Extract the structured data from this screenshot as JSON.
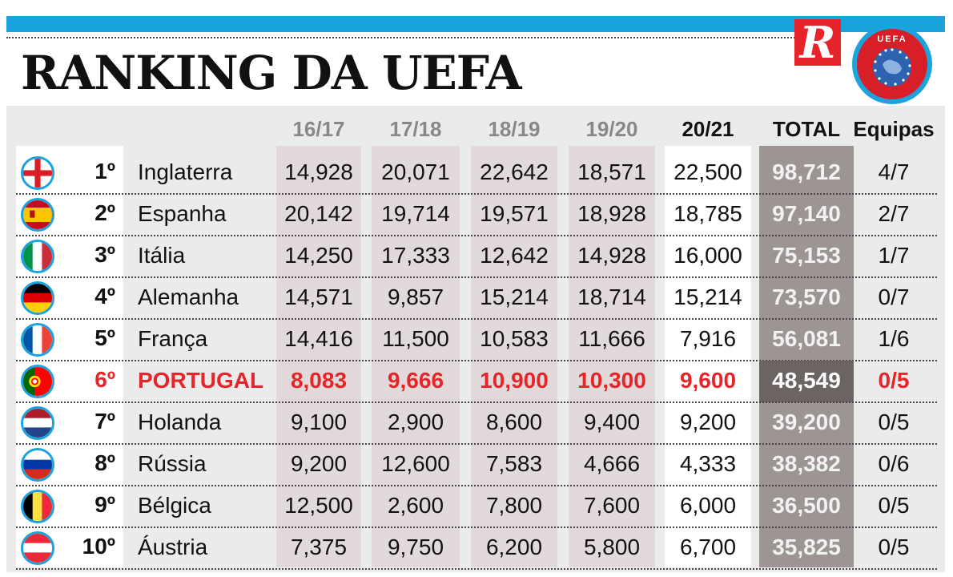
{
  "title": "RANKING DA UEFA",
  "logos": {
    "record_letter": "R",
    "uefa_text": "UEFA"
  },
  "colors": {
    "accent": "#1aa3dc",
    "highlight": "#e5252a"
  },
  "headers": [
    "16/17",
    "17/18",
    "18/19",
    "19/20",
    "20/21",
    "TOTAL",
    "Equipas"
  ],
  "rows": [
    {
      "rank": "1º",
      "country": "Inglaterra",
      "flag_icon": "england-flag-icon",
      "values": [
        "14,928",
        "20,071",
        "22,642",
        "18,571",
        "22,500"
      ],
      "total": "98,712",
      "teams": "4/7"
    },
    {
      "rank": "2º",
      "country": "Espanha",
      "flag_icon": "spain-flag-icon",
      "values": [
        "20,142",
        "19,714",
        "19,571",
        "18,928",
        "18,785"
      ],
      "total": "97,140",
      "teams": "2/7"
    },
    {
      "rank": "3º",
      "country": "Itália",
      "flag_icon": "italy-flag-icon",
      "values": [
        "14,250",
        "17,333",
        "12,642",
        "14,928",
        "16,000"
      ],
      "total": "75,153",
      "teams": "1/7"
    },
    {
      "rank": "4º",
      "country": "Alemanha",
      "flag_icon": "germany-flag-icon",
      "values": [
        "14,571",
        "9,857",
        "15,214",
        "18,714",
        "15,214"
      ],
      "total": "73,570",
      "teams": "0/7"
    },
    {
      "rank": "5º",
      "country": "França",
      "flag_icon": "france-flag-icon",
      "values": [
        "14,416",
        "11,500",
        "10,583",
        "11,666",
        "7,916"
      ],
      "total": "56,081",
      "teams": "1/6"
    },
    {
      "rank": "6º",
      "country": "PORTUGAL",
      "flag_icon": "portugal-flag-icon",
      "values": [
        "8,083",
        "9,666",
        "10,900",
        "10,300",
        "9,600"
      ],
      "total": "48,549",
      "teams": "0/5"
    },
    {
      "rank": "7º",
      "country": "Holanda",
      "flag_icon": "netherlands-flag-icon",
      "values": [
        "9,100",
        "2,900",
        "8,600",
        "9,400",
        "9,200"
      ],
      "total": "39,200",
      "teams": "0/5"
    },
    {
      "rank": "8º",
      "country": "Rússia",
      "flag_icon": "russia-flag-icon",
      "values": [
        "9,200",
        "12,600",
        "7,583",
        "4,666",
        "4,333"
      ],
      "total": "38,382",
      "teams": "0/6"
    },
    {
      "rank": "9º",
      "country": "Bélgica",
      "flag_icon": "belgium-flag-icon",
      "values": [
        "12,500",
        "2,600",
        "7,800",
        "7,600",
        "6,000"
      ],
      "total": "36,500",
      "teams": "0/5"
    },
    {
      "rank": "10º",
      "country": "Áustria",
      "flag_icon": "austria-flag-icon",
      "values": [
        "7,375",
        "9,750",
        "6,200",
        "5,800",
        "6,700"
      ],
      "total": "35,825",
      "teams": "0/5"
    }
  ]
}
